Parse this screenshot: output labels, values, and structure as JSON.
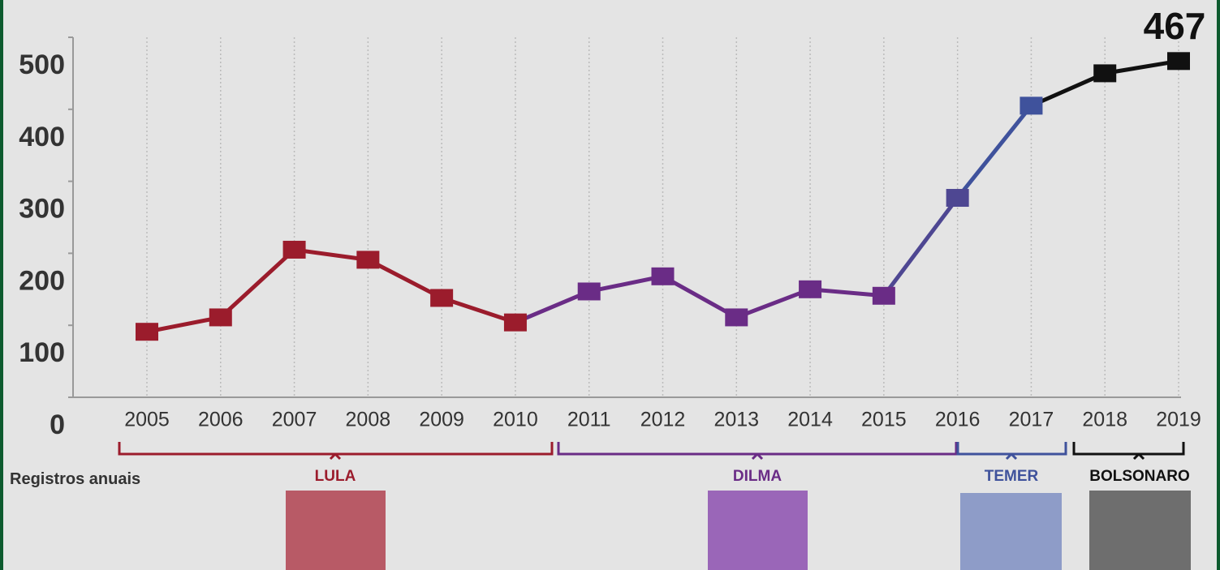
{
  "chart_data": {
    "type": "line",
    "categories": [
      "2005",
      "2006",
      "2007",
      "2008",
      "2009",
      "2010",
      "2011",
      "2012",
      "2013",
      "2014",
      "2015",
      "2016",
      "2017",
      "2018",
      "2019"
    ],
    "series": [
      {
        "values": [
          91,
          111,
          205,
          191,
          138,
          104,
          147,
          168,
          111,
          150,
          141,
          277,
          405,
          450,
          467
        ],
        "point_colors": [
          "#9b1c2c",
          "#9b1c2c",
          "#9b1c2c",
          "#9b1c2c",
          "#9b1c2c",
          "#9b1c2c",
          "#6a2c86",
          "#6a2c86",
          "#6a2c86",
          "#6a2c86",
          "#6a2c86",
          "#4e4792",
          "#3f529c",
          "#111111",
          "#111111"
        ]
      }
    ],
    "ylim": [
      0,
      500
    ],
    "yticks": [
      0,
      100,
      200,
      300,
      400,
      500
    ],
    "grid": true,
    "note": "Registros anuais",
    "periods": [
      {
        "name": "LULA",
        "color": "#9b1c2c"
      },
      {
        "name": "DILMA",
        "color": "#6a2c86"
      },
      {
        "name": "TEMER",
        "color": "#3f529c"
      },
      {
        "name": "BOLSONARO",
        "color": "#111111"
      }
    ]
  }
}
